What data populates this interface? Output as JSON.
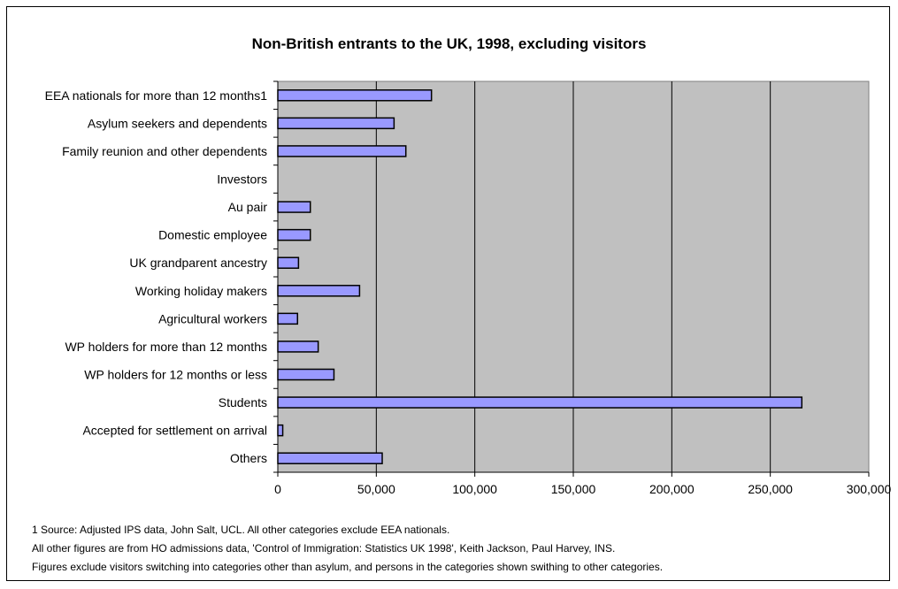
{
  "chart_data": {
    "type": "bar",
    "orientation": "horizontal",
    "title": "Non-British entrants to the UK, 1998, excluding visitors",
    "xlabel": "",
    "ylabel": "",
    "categories": [
      "EEA nationals for more than 12 months1",
      "Asylum seekers and dependents",
      "Family reunion and other dependents",
      "Investors",
      "Au pair",
      "Domestic employee",
      "UK grandparent ancestry",
      "Working holiday makers",
      "Agricultural workers",
      "WP holders for more than 12 months",
      "WP holders for 12 months or less",
      "Students",
      "Accepted for settlement on arrival",
      "Others"
    ],
    "values": [
      78000,
      59000,
      65000,
      0,
      16500,
      16500,
      10500,
      41500,
      10000,
      20500,
      28500,
      266000,
      2500,
      53000
    ],
    "xlim": [
      0,
      300000
    ],
    "x_ticks": [
      0,
      50000,
      100000,
      150000,
      200000,
      250000,
      300000
    ],
    "x_tick_labels": [
      "0",
      "50,000",
      "100,000",
      "150,000",
      "200,000",
      "250,000",
      "300,000"
    ],
    "grid": "vertical",
    "legend": "none",
    "colors": {
      "bar_fill": "#9999ff",
      "bar_stroke": "#000000",
      "plot_background": "#c0c0c0",
      "gridline": "#000000"
    }
  },
  "footnotes": [
    "1 Source: Adjusted IPS data, John Salt, UCL. All other categories exclude EEA nationals.",
    "All other figures are from HO admissions data, 'Control of Immigration: Statistics UK 1998', Keith Jackson, Paul Harvey, INS.",
    "Figures exclude visitors switching into categories other than asylum, and persons in the categories shown swithing to other categories."
  ]
}
